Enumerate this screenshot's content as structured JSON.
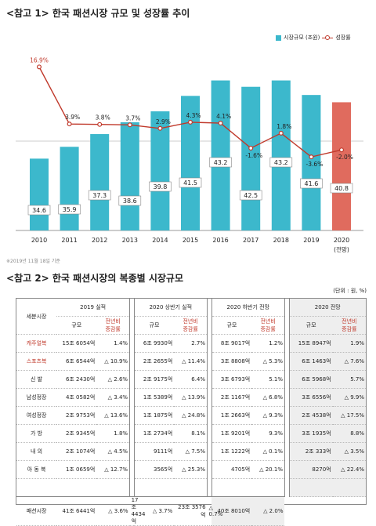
{
  "titles": {
    "chart": "<참고 1> 한국 패션시장 규모 및 성장률 추이",
    "table": "<참고 2> 한국 패션시장의 복종별 시장규모"
  },
  "legend": {
    "bar": "시장규모 (조원)",
    "line": "성장률"
  },
  "note": "※2019년 11월 18일 기준",
  "chart_data": {
    "type": "bar",
    "categories": [
      "2010",
      "2011",
      "2012",
      "2013",
      "2014",
      "2015",
      "2016",
      "2017",
      "2018",
      "2019",
      "2020"
    ],
    "category_sublabel": {
      "2020": "(전망)"
    },
    "series": [
      {
        "name": "시장규모 (조원)",
        "type": "bar",
        "values": [
          34.6,
          35.9,
          37.3,
          38.6,
          39.8,
          41.5,
          43.2,
          42.5,
          43.2,
          41.6,
          40.8
        ],
        "labels": [
          "34.6",
          "35.9",
          "37.3",
          "38.6",
          "39.8",
          "41.5",
          "43.2",
          "42.5",
          "43.2",
          "41.6",
          "40.8"
        ]
      },
      {
        "name": "성장률",
        "type": "line",
        "values": [
          16.9,
          3.9,
          3.8,
          3.7,
          2.9,
          4.3,
          4.1,
          -1.6,
          1.8,
          -3.6,
          -2.0
        ],
        "labels": [
          "16.9%",
          "3.9%",
          "3.8%",
          "3.7%",
          "2.9%",
          "4.3%",
          "4.1%",
          "-1.6%",
          "1.8%",
          "-3.6%",
          "-2.0%"
        ]
      }
    ],
    "colors": {
      "bar": "#3cb8cc",
      "bar_highlight": "#e06b5e",
      "line": "#c0392b"
    }
  },
  "table": {
    "unit": "(단위 : 원, %)",
    "header_segment": "세분시장",
    "periods": [
      "2019 실적",
      "2020 상반기 실적",
      "2020 하반기 전망",
      "2020 전망"
    ],
    "sub_scale": "규모",
    "sub_rate": "전년비\n증감률",
    "rows": [
      {
        "seg": "캐주얼복",
        "v": [
          "15조 6054억",
          "1.4%",
          "6조 9930억",
          "2.7%",
          "8조 9017억",
          "1.2%",
          "15조 8947억",
          "1.9%"
        ]
      },
      {
        "seg": "스포츠복",
        "v": [
          "6조 6544억",
          "△ 10.9%",
          "2조 2655억",
          "△ 11.4%",
          "3조 8808억",
          "△ 5.3%",
          "6조 1463억",
          "△ 7.6%"
        ]
      },
      {
        "seg": "신 발",
        "v": [
          "6조 2430억",
          "△ 2.6%",
          "2조 9175억",
          "6.4%",
          "3조 6793억",
          "5.1%",
          "6조 5968억",
          "5.7%"
        ]
      },
      {
        "seg": "남성정장",
        "v": [
          "4조 0582억",
          "△ 3.4%",
          "1조 5389억",
          "△ 13.9%",
          "2조 1167억",
          "△ 6.8%",
          "3조 6556억",
          "△ 9.9%"
        ]
      },
      {
        "seg": "여성정장",
        "v": [
          "2조 9753억",
          "△ 13.6%",
          "1조 1875억",
          "△ 24.8%",
          "1조 2663억",
          "△ 9.3%",
          "2조 4538억",
          "△ 17.5%"
        ]
      },
      {
        "seg": "가 방",
        "v": [
          "2조 9345억",
          "1.8%",
          "1조 2734억",
          "8.1%",
          "1조 9201억",
          "9.3%",
          "3조 1935억",
          "8.8%"
        ]
      },
      {
        "seg": "내 의",
        "v": [
          "2조 1074억",
          "△ 4.5%",
          "9111억",
          "△ 7.5%",
          "1조 1222억",
          "△ 0.1%",
          "2조 333억",
          "△ 3.5%"
        ]
      },
      {
        "seg": "아 동 복",
        "v": [
          "1조 0659억",
          "△ 12.7%",
          "3565억",
          "△ 25.3%",
          "4705억",
          "△ 20.1%",
          "8270억",
          "△ 22.4%"
        ]
      }
    ],
    "total": {
      "seg": "패션시장",
      "v": [
        "41조 6441억",
        "△ 3.6%",
        "17조 4434억",
        "△ 3.7%",
        "23조 3576억",
        "△ 0.7%",
        "40조 8010억",
        "△ 2.0%"
      ]
    }
  }
}
